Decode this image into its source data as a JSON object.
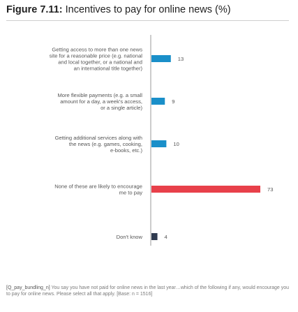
{
  "figure": {
    "label": "Figure 7.11:",
    "title": "Incentives to pay for online news (%)"
  },
  "chart_data": {
    "type": "bar",
    "orientation": "horizontal",
    "categories": [
      "Getting access to more than one news site for a reasonable price (e.g. national and local together, or a national and an international title together)",
      "More flexible payments (e.g. a small amount for a day, a week's access, or a single article)",
      "Getting additional services along with the news (e.g. games, cooking, e-books, etc.)",
      "None of these are likely to encourage me to pay",
      "Don't know"
    ],
    "category_lines": [
      [
        "Getting access to more than one news",
        "site for a reasonable price (e.g. national",
        "and local together, or a national and",
        "an international title together)"
      ],
      [
        "More flexible payments (e.g. a small",
        "amount for a day, a week's access,",
        "or a single article)"
      ],
      [
        "Getting additional services along with",
        "the news (e.g. games, cooking,",
        "e-books, etc.)"
      ],
      [
        "None of these are likely to encourage",
        "me to pay"
      ],
      [
        "Don't know"
      ]
    ],
    "values": [
      13,
      9,
      10,
      73,
      4
    ],
    "value_labels": [
      "13",
      "9",
      "10",
      "73",
      "4"
    ],
    "colors": [
      "#1a8fc9",
      "#1a8fc9",
      "#1a8fc9",
      "#e8404a",
      "#2f3a4f"
    ],
    "xlim": [
      0,
      73
    ],
    "grid": false
  },
  "footnote": {
    "code": "[Q_pay_bundling_n]",
    "text": " You say you have not paid for online news in the last year…which of the following if any, would encourage you to pay for online news. Please select all that apply. [Base: n = 1516]"
  }
}
